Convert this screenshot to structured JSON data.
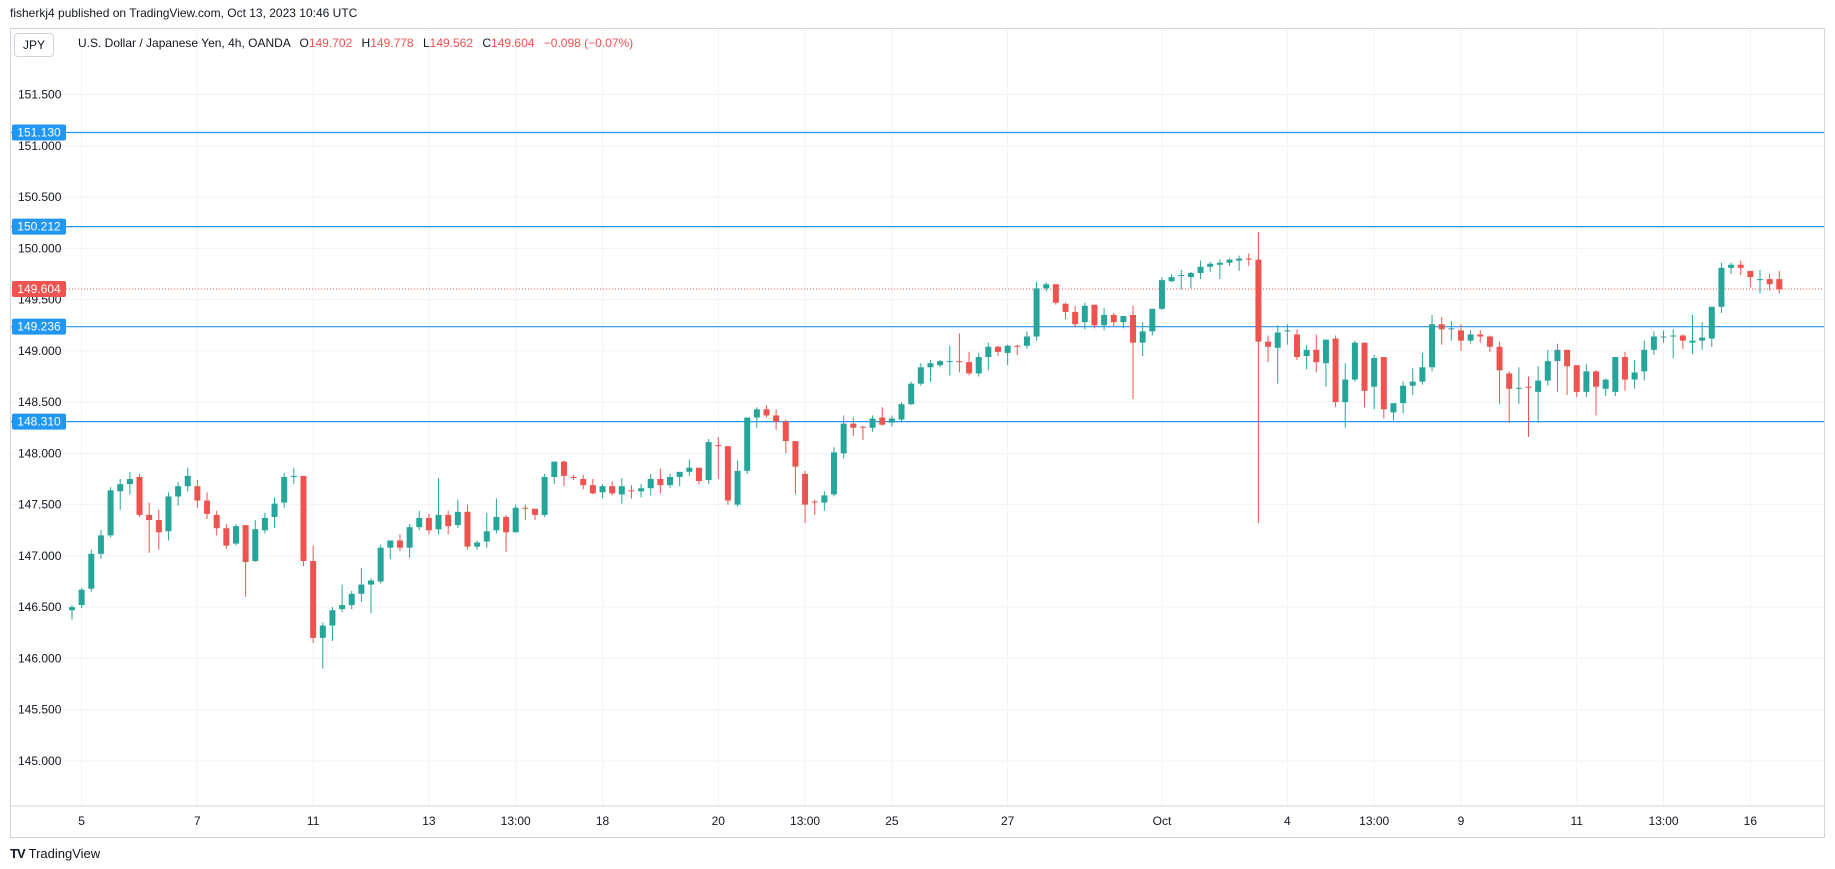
{
  "publisher_line": "fisherkj4 published on TradingView.com, Oct 13, 2023 10:46 UTC",
  "symbol_badge": "JPY",
  "legend": {
    "title": "U.S. Dollar / Japanese Yen, 4h, OANDA",
    "open_label": "O",
    "open": "149.702",
    "high_label": "H",
    "high": "149.778",
    "low_label": "L",
    "low": "149.562",
    "close_label": "C",
    "close": "149.604",
    "change": "−0.098 (−0.07%)"
  },
  "footer": {
    "logo_text": "TV",
    "brand": "TradingView"
  },
  "colors": {
    "up": "#26a69a",
    "down": "#ef5350",
    "hline": "#2196f3",
    "grid": "#f0f3fa",
    "axis_text": "#131722"
  },
  "chart_data": {
    "type": "candlestick",
    "ylim": [
      144.56,
      152.14
    ],
    "yticks": [
      "151.500",
      "151.000",
      "150.500",
      "150.000",
      "149.500",
      "149.000",
      "148.500",
      "148.000",
      "147.500",
      "147.000",
      "146.500",
      "146.000",
      "145.500",
      "145.000"
    ],
    "xlim": [
      0,
      175
    ],
    "xticks": [
      {
        "label": "5",
        "x": 1
      },
      {
        "label": "7",
        "x": 13
      },
      {
        "label": "11",
        "x": 25
      },
      {
        "label": "13",
        "x": 37
      },
      {
        "label": "13:00",
        "x": 46
      },
      {
        "label": "18",
        "x": 55
      },
      {
        "label": "20",
        "x": 67
      },
      {
        "label": "13:00",
        "x": 76
      },
      {
        "label": "25",
        "x": 85
      },
      {
        "label": "27",
        "x": 97
      },
      {
        "label": "Oct",
        "x": 113
      },
      {
        "label": "4",
        "x": 126
      },
      {
        "label": "13:00",
        "x": 135
      },
      {
        "label": "9",
        "x": 144
      },
      {
        "label": "11",
        "x": 156
      },
      {
        "label": "13:00",
        "x": 165
      },
      {
        "label": "16",
        "x": 174
      }
    ],
    "horizontal_levels": [
      {
        "value": 151.13,
        "label": "151.130"
      },
      {
        "value": 150.212,
        "label": "150.212"
      },
      {
        "value": 149.236,
        "label": "149.236"
      },
      {
        "value": 148.31,
        "label": "148.310"
      }
    ],
    "last_price": {
      "value": 149.604,
      "label": "149.604"
    },
    "candles": [
      [
        146.47,
        146.52,
        146.38,
        146.5
      ],
      [
        146.52,
        146.69,
        146.49,
        146.67
      ],
      [
        146.68,
        147.06,
        146.65,
        147.02
      ],
      [
        147.02,
        147.25,
        146.97,
        147.2
      ],
      [
        147.2,
        147.67,
        147.18,
        147.64
      ],
      [
        147.63,
        147.75,
        147.45,
        147.7
      ],
      [
        147.7,
        147.82,
        147.6,
        147.75
      ],
      [
        147.77,
        147.8,
        147.38,
        147.4
      ],
      [
        147.4,
        147.52,
        147.03,
        147.35
      ],
      [
        147.35,
        147.45,
        147.06,
        147.23
      ],
      [
        147.24,
        147.62,
        147.15,
        147.58
      ],
      [
        147.58,
        147.72,
        147.49,
        147.68
      ],
      [
        147.68,
        147.86,
        147.63,
        147.78
      ],
      [
        147.68,
        147.74,
        147.47,
        147.54
      ],
      [
        147.54,
        147.62,
        147.36,
        147.41
      ],
      [
        147.4,
        147.44,
        147.2,
        147.27
      ],
      [
        147.27,
        147.31,
        147.07,
        147.1
      ],
      [
        147.12,
        147.31,
        147.1,
        147.29
      ],
      [
        147.3,
        147.3,
        146.6,
        146.94
      ],
      [
        146.95,
        147.35,
        146.94,
        147.26
      ],
      [
        147.25,
        147.42,
        147.22,
        147.37
      ],
      [
        147.38,
        147.57,
        147.27,
        147.51
      ],
      [
        147.52,
        147.81,
        147.47,
        147.77
      ],
      [
        147.77,
        147.86,
        147.7,
        147.78
      ],
      [
        147.78,
        147.78,
        146.9,
        146.95
      ],
      [
        146.95,
        147.1,
        146.15,
        146.2
      ],
      [
        146.2,
        146.35,
        145.9,
        146.32
      ],
      [
        146.32,
        146.5,
        146.17,
        146.47
      ],
      [
        146.48,
        146.72,
        146.45,
        146.52
      ],
      [
        146.52,
        146.66,
        146.48,
        146.63
      ],
      [
        146.63,
        146.88,
        146.55,
        146.72
      ],
      [
        146.72,
        146.78,
        146.44,
        146.76
      ],
      [
        146.75,
        147.11,
        146.73,
        147.08
      ],
      [
        147.08,
        147.15,
        146.97,
        147.15
      ],
      [
        147.15,
        147.21,
        147.05,
        147.08
      ],
      [
        147.08,
        147.31,
        146.98,
        147.28
      ],
      [
        147.28,
        147.44,
        147.25,
        147.37
      ],
      [
        147.37,
        147.41,
        147.21,
        147.25
      ],
      [
        147.26,
        147.76,
        147.21,
        147.4
      ],
      [
        147.4,
        147.44,
        147.21,
        147.29
      ],
      [
        147.3,
        147.55,
        147.27,
        147.43
      ],
      [
        147.43,
        147.5,
        147.06,
        147.09
      ],
      [
        147.09,
        147.15,
        147.06,
        147.13
      ],
      [
        147.14,
        147.42,
        147.08,
        147.24
      ],
      [
        147.25,
        147.56,
        147.22,
        147.38
      ],
      [
        147.38,
        147.4,
        147.04,
        147.23
      ],
      [
        147.23,
        147.5,
        147.23,
        147.47
      ],
      [
        147.47,
        147.5,
        147.35,
        147.46
      ],
      [
        147.46,
        147.46,
        147.35,
        147.4
      ],
      [
        147.4,
        147.8,
        147.38,
        147.77
      ],
      [
        147.77,
        147.88,
        147.7,
        147.92
      ],
      [
        147.92,
        147.93,
        147.68,
        147.78
      ],
      [
        147.77,
        147.79,
        147.74,
        147.76
      ],
      [
        147.75,
        147.79,
        147.65,
        147.69
      ],
      [
        147.69,
        147.75,
        147.6,
        147.61
      ],
      [
        147.62,
        147.7,
        147.56,
        147.68
      ],
      [
        147.68,
        147.73,
        147.59,
        147.61
      ],
      [
        147.6,
        147.76,
        147.51,
        147.68
      ],
      [
        147.64,
        147.69,
        147.56,
        147.63
      ],
      [
        147.63,
        147.7,
        147.57,
        147.66
      ],
      [
        147.66,
        147.8,
        147.59,
        147.75
      ],
      [
        147.75,
        147.85,
        147.61,
        147.69
      ],
      [
        147.69,
        147.8,
        147.66,
        147.77
      ],
      [
        147.77,
        147.8,
        147.68,
        147.82
      ],
      [
        147.82,
        147.94,
        147.78,
        147.86
      ],
      [
        147.86,
        147.86,
        147.7,
        147.73
      ],
      [
        147.74,
        148.14,
        147.7,
        148.11
      ],
      [
        148.08,
        148.16,
        147.75,
        148.07
      ],
      [
        148.07,
        148.07,
        147.5,
        147.54
      ],
      [
        147.5,
        147.93,
        147.48,
        147.83
      ],
      [
        147.83,
        148.35,
        147.8,
        148.35
      ],
      [
        148.35,
        148.45,
        148.25,
        148.43
      ],
      [
        148.43,
        148.47,
        148.35,
        148.37
      ],
      [
        148.37,
        148.43,
        148.23,
        148.31
      ],
      [
        148.31,
        148.33,
        148.0,
        148.12
      ],
      [
        148.12,
        148.12,
        147.6,
        147.87
      ],
      [
        147.8,
        147.83,
        147.32,
        147.5
      ],
      [
        147.53,
        147.55,
        147.4,
        147.52
      ],
      [
        147.52,
        147.63,
        147.44,
        147.59
      ],
      [
        147.6,
        148.06,
        147.58,
        148.01
      ],
      [
        148.0,
        148.37,
        147.95,
        148.29
      ],
      [
        148.29,
        148.35,
        148.17,
        148.25
      ],
      [
        148.26,
        148.27,
        148.13,
        148.25
      ],
      [
        148.25,
        148.37,
        148.21,
        148.34
      ],
      [
        148.35,
        148.45,
        148.27,
        148.28
      ],
      [
        148.3,
        148.37,
        148.26,
        148.34
      ],
      [
        148.33,
        148.5,
        148.3,
        148.48
      ],
      [
        148.48,
        148.7,
        148.47,
        148.68
      ],
      [
        148.68,
        148.88,
        148.66,
        148.84
      ],
      [
        148.84,
        148.91,
        148.7,
        148.88
      ],
      [
        148.86,
        148.91,
        148.84,
        148.9
      ],
      [
        148.89,
        149.05,
        148.76,
        148.9
      ],
      [
        148.9,
        149.17,
        148.79,
        148.89
      ],
      [
        148.89,
        148.99,
        148.76,
        148.78
      ],
      [
        148.78,
        148.98,
        148.75,
        148.94
      ],
      [
        148.94,
        149.08,
        148.81,
        149.04
      ],
      [
        149.04,
        149.05,
        148.95,
        148.99
      ],
      [
        148.98,
        149.06,
        148.86,
        149.05
      ],
      [
        149.05,
        149.06,
        148.96,
        149.04
      ],
      [
        149.05,
        149.19,
        149.02,
        149.14
      ],
      [
        149.14,
        149.67,
        149.1,
        149.61
      ],
      [
        149.61,
        149.67,
        149.58,
        149.65
      ],
      [
        149.65,
        149.65,
        149.45,
        149.47
      ],
      [
        149.46,
        149.47,
        149.31,
        149.38
      ],
      [
        149.38,
        149.44,
        149.23,
        149.26
      ],
      [
        149.28,
        149.47,
        149.21,
        149.44
      ],
      [
        149.45,
        149.45,
        149.22,
        149.25
      ],
      [
        149.25,
        149.42,
        149.2,
        149.35
      ],
      [
        149.35,
        149.37,
        149.24,
        149.28
      ],
      [
        149.28,
        149.33,
        149.22,
        149.34
      ],
      [
        149.35,
        149.44,
        148.53,
        149.08
      ],
      [
        149.08,
        149.28,
        148.95,
        149.19
      ],
      [
        149.19,
        149.41,
        149.15,
        149.41
      ],
      [
        149.41,
        149.72,
        149.4,
        149.69
      ],
      [
        149.68,
        149.75,
        149.67,
        149.72
      ],
      [
        149.73,
        149.79,
        149.6,
        149.74
      ],
      [
        149.72,
        149.77,
        149.61,
        149.76
      ],
      [
        149.76,
        149.88,
        149.7,
        149.82
      ],
      [
        149.82,
        149.87,
        149.77,
        149.85
      ],
      [
        149.84,
        149.89,
        149.7,
        149.86
      ],
      [
        149.86,
        149.9,
        149.83,
        149.89
      ],
      [
        149.88,
        149.93,
        149.78,
        149.9
      ],
      [
        149.9,
        149.95,
        149.83,
        149.89
      ],
      [
        149.89,
        150.16,
        147.32,
        149.09
      ],
      [
        149.09,
        149.15,
        148.89,
        149.04
      ],
      [
        149.03,
        149.25,
        148.68,
        149.18
      ],
      [
        149.19,
        149.26,
        149.06,
        149.2
      ],
      [
        149.16,
        149.21,
        148.91,
        148.94
      ],
      [
        148.95,
        149.06,
        148.82,
        149.01
      ],
      [
        149.01,
        149.16,
        148.79,
        148.89
      ],
      [
        148.88,
        149.05,
        148.65,
        149.11
      ],
      [
        149.12,
        149.15,
        148.45,
        148.5
      ],
      [
        148.5,
        148.88,
        148.25,
        148.72
      ],
      [
        148.72,
        149.1,
        148.7,
        149.08
      ],
      [
        149.08,
        149.08,
        148.45,
        148.61
      ],
      [
        148.65,
        148.96,
        148.43,
        148.93
      ],
      [
        148.94,
        148.94,
        148.34,
        148.43
      ],
      [
        148.4,
        148.48,
        148.32,
        148.49
      ],
      [
        148.49,
        148.7,
        148.39,
        148.66
      ],
      [
        148.66,
        148.83,
        148.57,
        148.7
      ],
      [
        148.7,
        148.98,
        148.67,
        148.84
      ],
      [
        148.84,
        149.35,
        148.8,
        149.26
      ],
      [
        149.26,
        149.33,
        149.06,
        149.21
      ],
      [
        149.21,
        149.29,
        149.1,
        149.22
      ],
      [
        149.2,
        149.26,
        149.0,
        149.1
      ],
      [
        149.1,
        149.2,
        149.07,
        149.16
      ],
      [
        149.16,
        149.2,
        149.08,
        149.14
      ],
      [
        149.14,
        149.15,
        148.99,
        149.04
      ],
      [
        149.04,
        149.09,
        148.48,
        148.81
      ],
      [
        148.78,
        148.8,
        148.3,
        148.63
      ],
      [
        148.64,
        148.84,
        148.48,
        148.64
      ],
      [
        148.65,
        148.75,
        148.16,
        148.64
      ],
      [
        148.6,
        148.85,
        148.3,
        148.71
      ],
      [
        148.71,
        149.01,
        148.66,
        148.9
      ],
      [
        148.9,
        149.07,
        148.6,
        149.01
      ],
      [
        149.01,
        149.01,
        148.57,
        148.85
      ],
      [
        148.86,
        148.86,
        148.55,
        148.6
      ],
      [
        148.6,
        148.87,
        148.55,
        148.8
      ],
      [
        148.8,
        148.81,
        148.37,
        148.65
      ],
      [
        148.63,
        148.73,
        148.56,
        148.72
      ],
      [
        148.6,
        148.94,
        148.56,
        148.94
      ],
      [
        148.94,
        148.99,
        148.61,
        148.72
      ],
      [
        148.72,
        148.91,
        148.63,
        148.79
      ],
      [
        148.8,
        149.1,
        148.71,
        149.01
      ],
      [
        149.01,
        149.19,
        148.96,
        149.14
      ],
      [
        149.14,
        149.2,
        149.08,
        149.14
      ],
      [
        149.14,
        149.21,
        148.93,
        149.15
      ],
      [
        149.15,
        149.16,
        149.02,
        149.1
      ],
      [
        149.08,
        149.35,
        148.97,
        149.1
      ],
      [
        149.1,
        149.28,
        149.01,
        149.13
      ],
      [
        149.12,
        149.39,
        149.04,
        149.43
      ],
      [
        149.43,
        149.86,
        149.37,
        149.81
      ],
      [
        149.81,
        149.86,
        149.75,
        149.84
      ],
      [
        149.84,
        149.88,
        149.74,
        149.81
      ],
      [
        149.78,
        149.78,
        149.62,
        149.72
      ],
      [
        149.69,
        149.79,
        149.56,
        149.7
      ],
      [
        149.7,
        149.75,
        149.59,
        149.65
      ],
      [
        149.7,
        149.78,
        149.56,
        149.6
      ]
    ]
  }
}
